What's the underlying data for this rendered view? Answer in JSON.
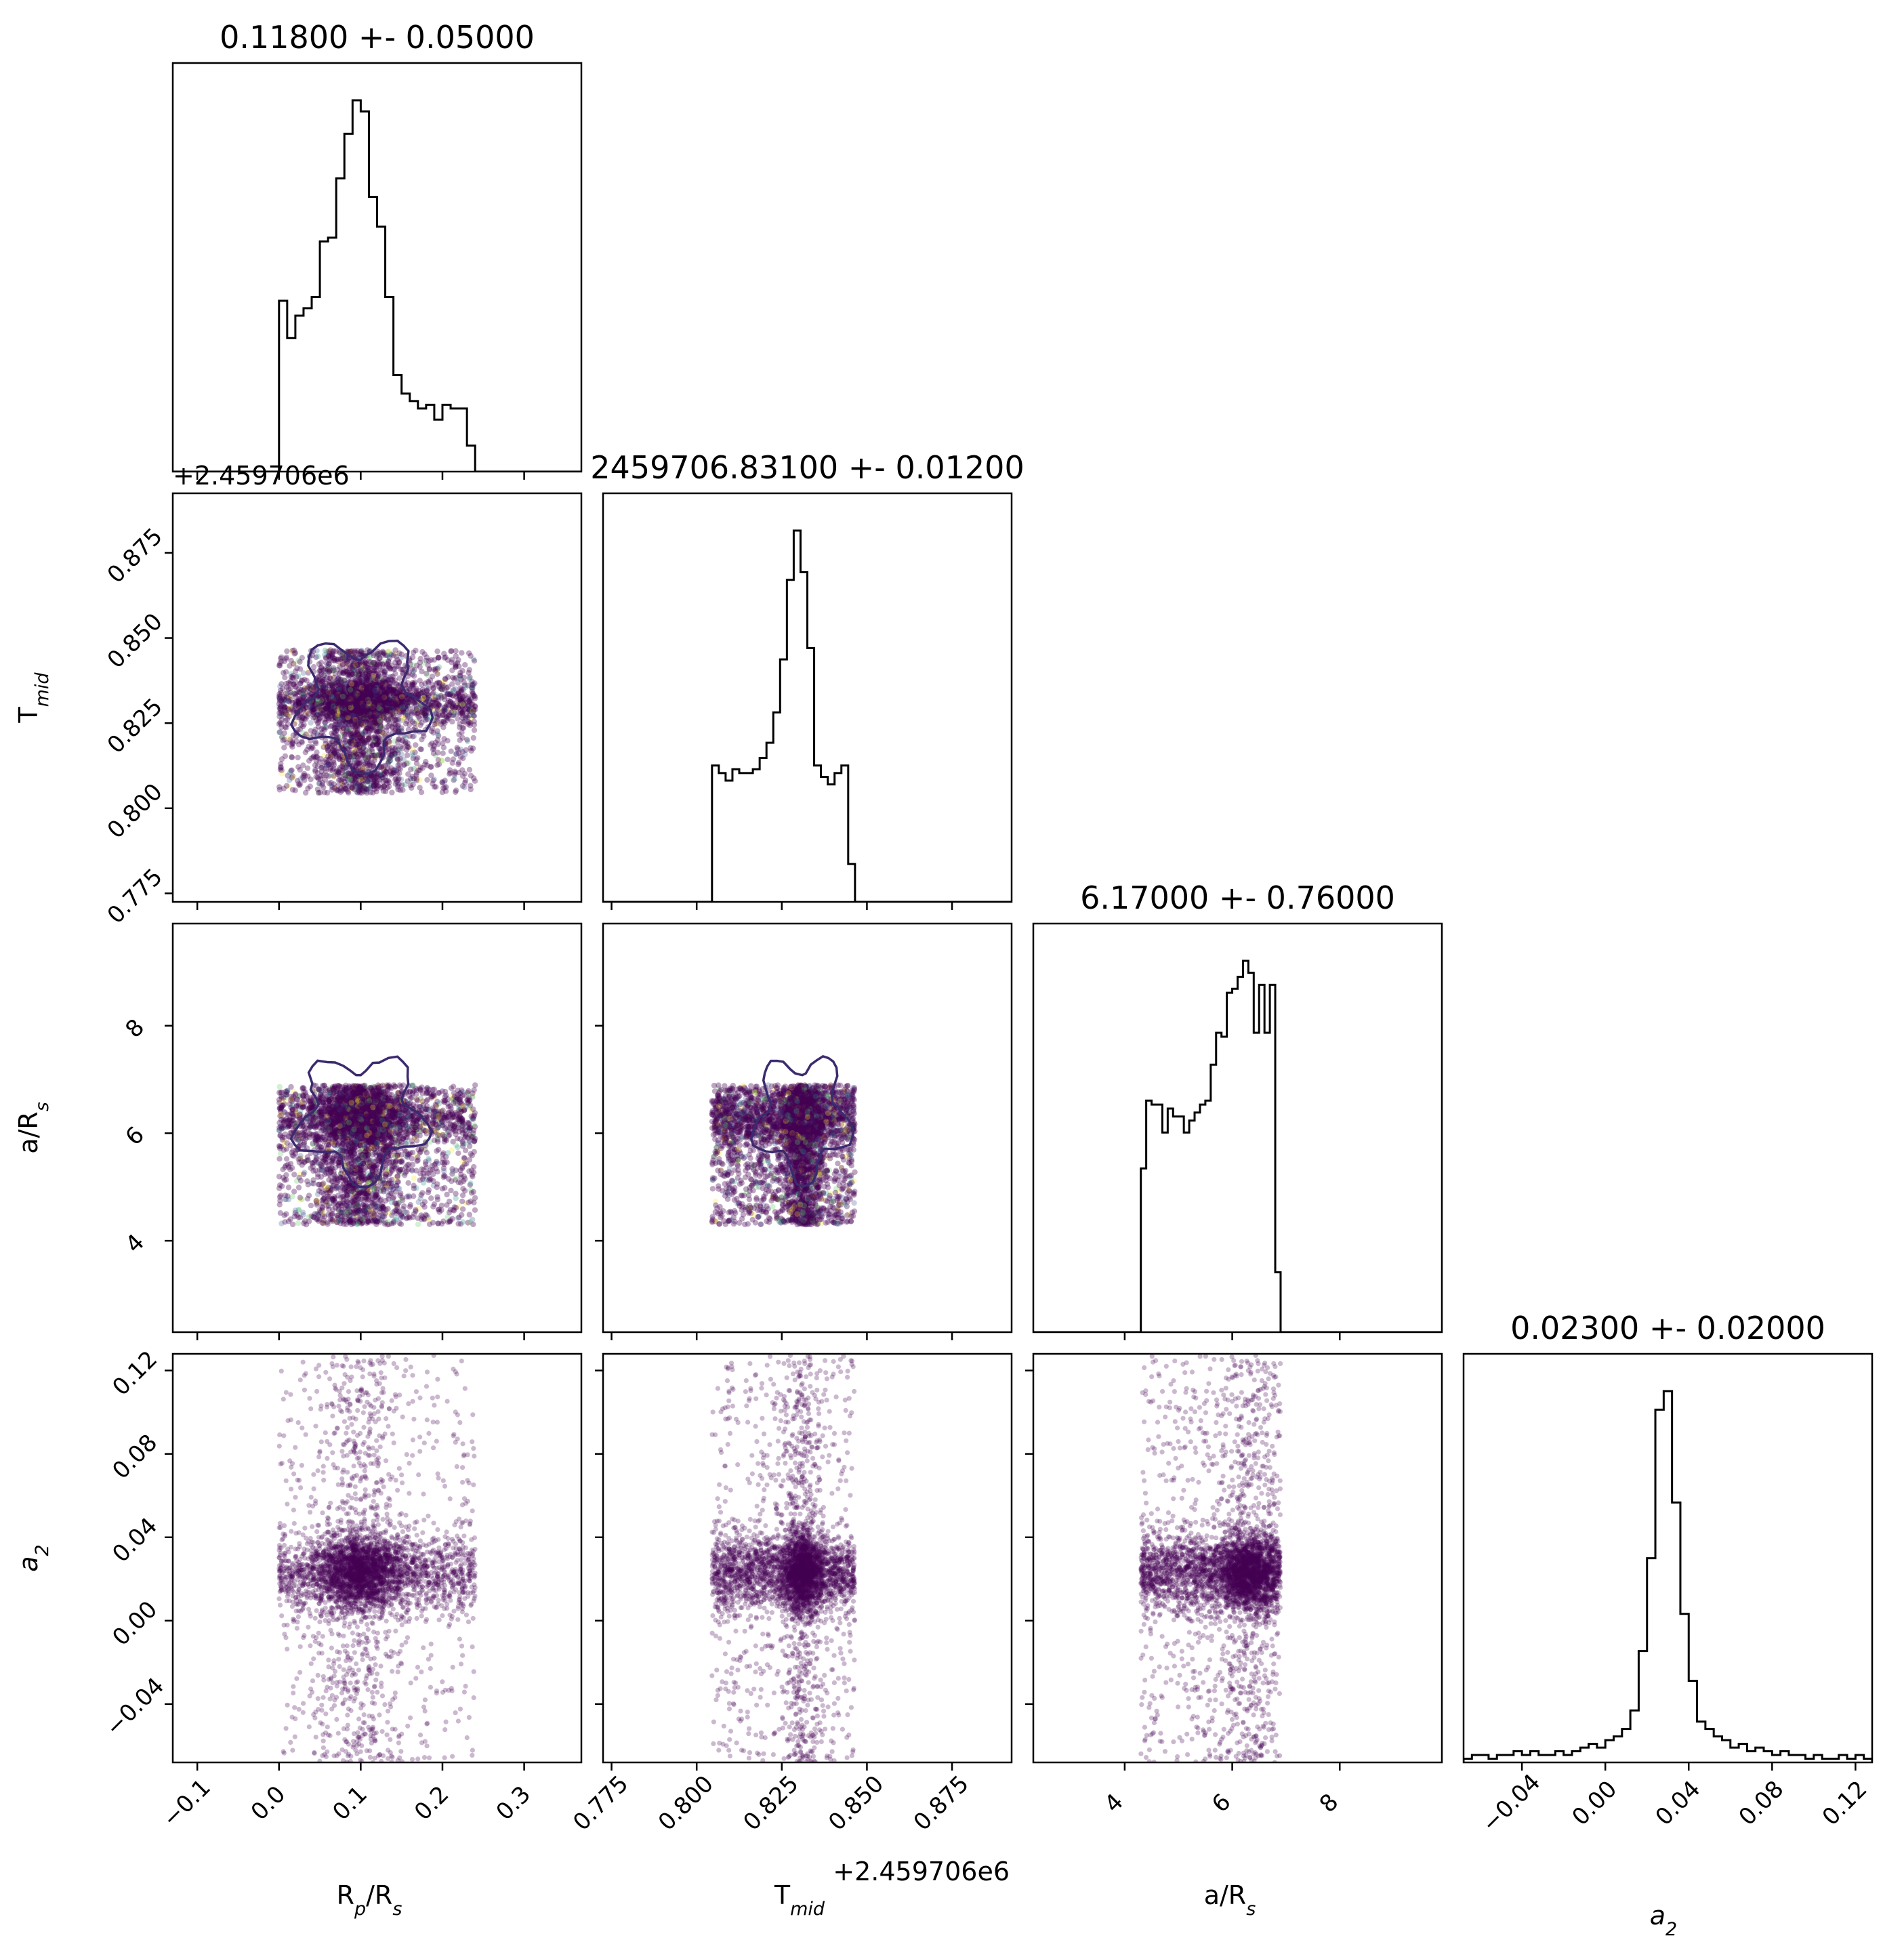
{
  "chart_data": {
    "type": "corner",
    "parameters": [
      {
        "key": "rp",
        "title": "0.11800 +- 0.05000",
        "label_main": "R",
        "label_sub_1": "p",
        "label_mid": "/R",
        "label_sub_2": "s",
        "lim": [
          -0.13,
          0.37
        ],
        "ticks": [
          "−0.1",
          "0.0",
          "0.1",
          "0.2",
          "0.3"
        ],
        "tick_values": [
          -0.1,
          0.0,
          0.1,
          0.2,
          0.3
        ],
        "range": [
          0.0,
          0.24
        ],
        "hist_peak": 0.1,
        "histogram": {
          "bin_edges": [
            0.0,
            0.01,
            0.02,
            0.03,
            0.04,
            0.05,
            0.06,
            0.07,
            0.08,
            0.09,
            0.1,
            0.11,
            0.12,
            0.13,
            0.14,
            0.15,
            0.16,
            0.17,
            0.18,
            0.19,
            0.2,
            0.21,
            0.22,
            0.23,
            0.24
          ],
          "counts": [
            46,
            36,
            42,
            44,
            47,
            62,
            63,
            79,
            91,
            100,
            97,
            74,
            66,
            47,
            26,
            21,
            19,
            17,
            18,
            14,
            18,
            17,
            17,
            7
          ]
        }
      },
      {
        "key": "tmid",
        "title": "2459706.83100 +- 0.01200",
        "label_main": "T",
        "label_sub_1": "mid",
        "lim": [
          0.7725,
          0.8925
        ],
        "ticks": [
          "0.775",
          "0.800",
          "0.825",
          "0.850",
          "0.875"
        ],
        "tick_values": [
          0.775,
          0.8,
          0.825,
          0.85,
          0.875
        ],
        "offset_text": "+2.459706e6",
        "range": [
          0.8045,
          0.8465
        ],
        "hist_peak": 0.831,
        "histogram": {
          "bin_edges": [
            0.8045,
            0.8065,
            0.8085,
            0.8105,
            0.8125,
            0.8145,
            0.8165,
            0.8185,
            0.8205,
            0.8225,
            0.8245,
            0.8265,
            0.8285,
            0.8305,
            0.8325,
            0.8345,
            0.8365,
            0.8385,
            0.8405,
            0.8425,
            0.8445,
            0.8465
          ],
          "counts": [
            36,
            34,
            32,
            35,
            34,
            34,
            35,
            38,
            42,
            50,
            64,
            85,
            98,
            87,
            67,
            36,
            33,
            31,
            34,
            36,
            10
          ]
        }
      },
      {
        "key": "ars",
        "title": "6.17000 +- 0.76000",
        "label_main": "a/R",
        "label_sub_2": "s",
        "lim": [
          2.3,
          9.9
        ],
        "ticks": [
          "4",
          "6",
          "8"
        ],
        "tick_values": [
          4,
          6,
          8
        ],
        "range": [
          4.3,
          6.9
        ],
        "hist_peak": 6.3,
        "histogram": {
          "bin_edges": [
            4.3,
            4.4,
            4.5,
            4.6,
            4.7,
            4.8,
            4.9,
            5.0,
            5.1,
            5.2,
            5.3,
            5.4,
            5.5,
            5.6,
            5.7,
            5.8,
            5.9,
            6.0,
            6.1,
            6.2,
            6.3,
            6.4,
            6.5,
            6.6,
            6.7,
            6.8,
            6.9
          ],
          "counts": [
            41,
            58,
            57,
            57,
            50,
            56,
            54,
            54,
            50,
            53,
            55,
            57,
            58,
            67,
            75,
            74,
            85,
            86,
            89,
            93,
            90,
            75,
            87,
            75,
            87,
            15
          ]
        }
      },
      {
        "key": "a2",
        "title": "0.02300 +- 0.02000",
        "label_main": "a",
        "label_sub_1": "2",
        "lim": [
          -0.068,
          0.128
        ],
        "ticks": [
          "−0.04",
          "0.00",
          "0.04",
          "0.08",
          "0.12"
        ],
        "tick_values": [
          -0.04,
          0.0,
          0.04,
          0.08,
          0.12
        ],
        "range": [
          -0.068,
          0.128
        ],
        "hist_peak": 0.023,
        "histogram": {
          "bin_edges": [
            -0.068,
            -0.064,
            -0.06,
            -0.056,
            -0.052,
            -0.048,
            -0.044,
            -0.04,
            -0.036,
            -0.032,
            -0.028,
            -0.024,
            -0.02,
            -0.016,
            -0.012,
            -0.008,
            -0.004,
            0.0,
            0.004,
            0.008,
            0.012,
            0.016,
            0.02,
            0.024,
            0.028,
            0.032,
            0.036,
            0.04,
            0.044,
            0.048,
            0.052,
            0.056,
            0.06,
            0.064,
            0.068,
            0.072,
            0.076,
            0.08,
            0.084,
            0.088,
            0.092,
            0.096,
            0.1,
            0.104,
            0.108,
            0.112,
            0.116,
            0.12,
            0.124,
            0.128
          ],
          "counts": [
            1,
            2,
            2,
            1,
            2,
            2,
            3,
            2,
            3,
            2,
            2,
            3,
            2,
            3,
            4,
            5,
            4,
            6,
            7,
            9,
            14,
            30,
            55,
            95,
            100,
            70,
            40,
            22,
            11,
            9,
            7,
            6,
            4,
            5,
            3,
            4,
            3,
            2,
            3,
            2,
            2,
            1,
            2,
            1,
            1,
            2,
            1,
            2,
            1
          ]
        }
      }
    ],
    "samples": 4000,
    "point_color": "#440154",
    "point_palette": [
      "#440154",
      "#3b528b",
      "#21918c",
      "#5ec962",
      "#fde725"
    ],
    "contour_color": "#3b2a6e",
    "line_color": "#000000"
  }
}
